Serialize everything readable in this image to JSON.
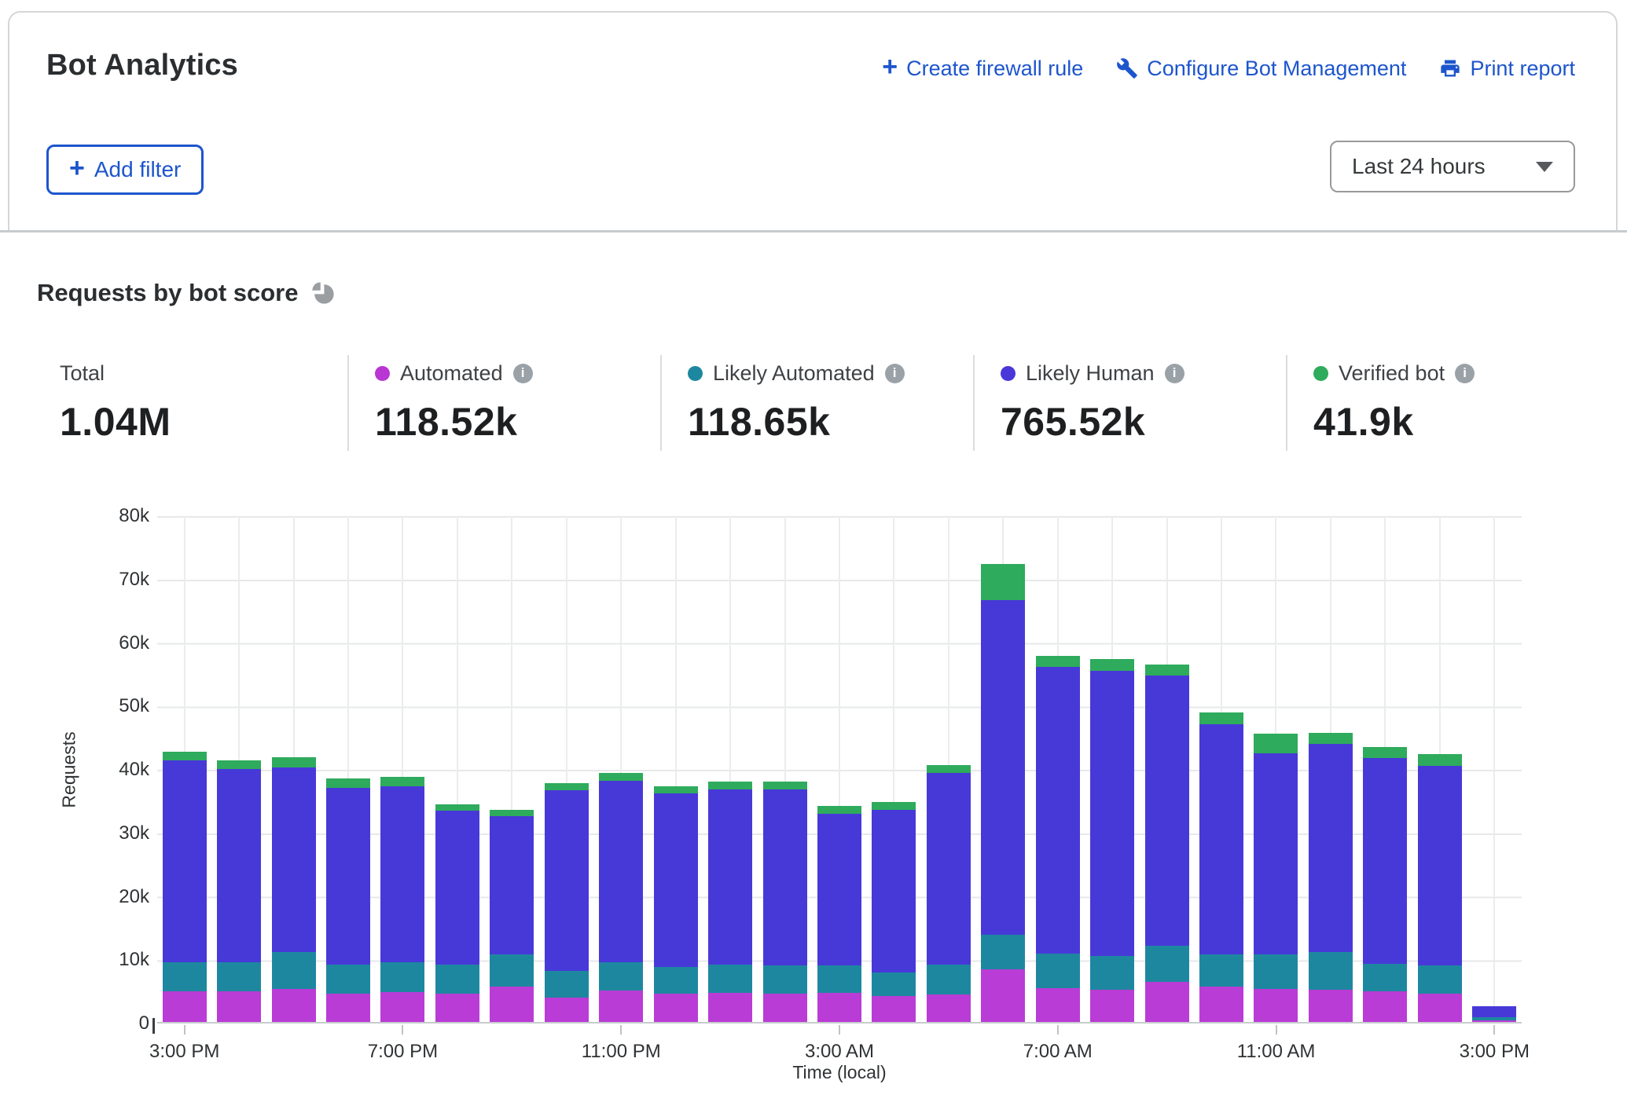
{
  "header": {
    "title": "Bot Analytics",
    "actions": [
      {
        "label": "Create firewall rule",
        "icon": "plus-icon"
      },
      {
        "label": "Configure Bot Management",
        "icon": "wrench-icon"
      },
      {
        "label": "Print report",
        "icon": "printer-icon"
      }
    ],
    "add_filter_label": "Add filter",
    "time_range": "Last 24 hours"
  },
  "section": {
    "title": "Requests by bot score",
    "stats": [
      {
        "label": "Total",
        "value": "1.04M",
        "color": null
      },
      {
        "label": "Automated",
        "value": "118.52k",
        "color": "#b836d3"
      },
      {
        "label": "Likely Automated",
        "value": "118.65k",
        "color": "#1e87a0"
      },
      {
        "label": "Likely Human",
        "value": "765.52k",
        "color": "#4a36d9"
      },
      {
        "label": "Verified bot",
        "value": "41.9k",
        "color": "#2eab5c"
      }
    ]
  },
  "chart_data": {
    "type": "bar",
    "stacked": true,
    "title": "Requests by bot score",
    "xlabel": "Time (local)",
    "ylabel": "Requests",
    "ylim": [
      0,
      80000
    ],
    "grid": true,
    "legend_position": "top",
    "values_unit": "thousands of requests",
    "y_tick_labels": [
      "80k",
      "70k",
      "60k",
      "50k",
      "40k",
      "30k",
      "20k",
      "10k",
      "0"
    ],
    "x_tick_labels": [
      "3:00 PM",
      "7:00 PM",
      "11:00 PM",
      "3:00 AM",
      "7:00 AM",
      "11:00 AM",
      "3:00 PM"
    ],
    "x_tick_every": 4,
    "categories": [
      "3:00 PM",
      "4:00 PM",
      "5:00 PM",
      "6:00 PM",
      "7:00 PM",
      "8:00 PM",
      "9:00 PM",
      "10:00 PM",
      "11:00 PM",
      "12:00 AM",
      "1:00 AM",
      "2:00 AM",
      "3:00 AM",
      "4:00 AM",
      "5:00 AM",
      "6:00 AM",
      "7:00 AM",
      "8:00 AM",
      "9:00 AM",
      "10:00 AM",
      "11:00 AM",
      "12:00 PM",
      "1:00 PM",
      "2:00 PM",
      "3:00 PM"
    ],
    "series": [
      {
        "name": "Automated",
        "color": "#b93cd6",
        "values": [
          4.8,
          4.8,
          5.2,
          4.4,
          4.7,
          4.5,
          5.6,
          3.9,
          4.9,
          4.4,
          4.6,
          4.5,
          4.6,
          4.1,
          4.3,
          8.3,
          5.3,
          5.1,
          6.3,
          5.6,
          5.2,
          5.1,
          4.8,
          4.5,
          0.3
        ]
      },
      {
        "name": "Likely Automated",
        "color": "#1e87a0",
        "values": [
          4.6,
          4.6,
          5.8,
          4.7,
          4.7,
          4.6,
          5.1,
          4.1,
          4.5,
          4.3,
          4.5,
          4.4,
          4.3,
          3.7,
          4.7,
          5.5,
          5.5,
          5.3,
          5.7,
          5.1,
          5.4,
          5.9,
          4.4,
          4.4,
          0.4
        ]
      },
      {
        "name": "Likely Human",
        "color": "#4739d8",
        "values": [
          31.9,
          30.5,
          29.1,
          27.8,
          27.8,
          24.2,
          21.7,
          28.5,
          28.6,
          27.4,
          27.6,
          27.7,
          23.9,
          25.6,
          30.2,
          52.7,
          45.2,
          45.0,
          42.6,
          36.3,
          31.8,
          32.8,
          32.4,
          31.5,
          1.8
        ]
      },
      {
        "name": "Verified bot",
        "color": "#2eab5c",
        "values": [
          1.3,
          1.3,
          1.6,
          1.5,
          1.5,
          1.0,
          1.1,
          1.2,
          1.2,
          1.1,
          1.2,
          1.3,
          1.3,
          1.3,
          1.3,
          5.7,
          1.7,
          1.8,
          1.8,
          1.8,
          3.0,
          1.8,
          1.7,
          1.8,
          0.0
        ]
      }
    ]
  }
}
